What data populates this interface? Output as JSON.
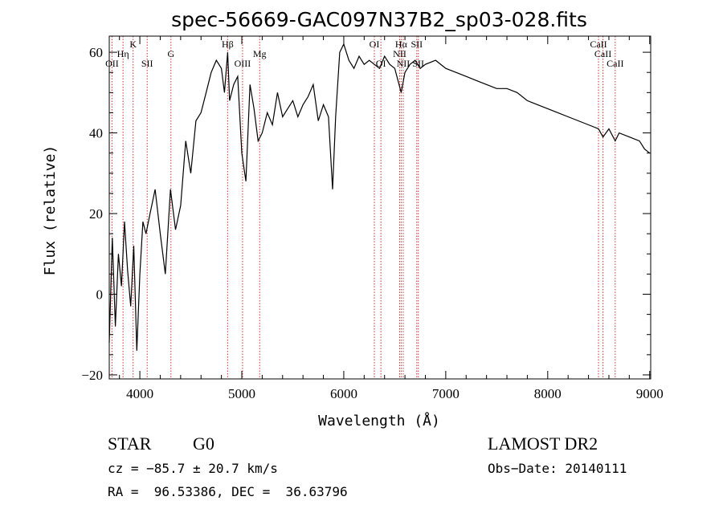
{
  "title": "spec-56669-GAC097N37B2_sp03-028.fits",
  "chart_data": {
    "type": "line",
    "title": "spec-56669-GAC097N37B2_sp03-028.fits",
    "xlabel": "Wavelength (Å)",
    "ylabel": "Flux (relative)",
    "xlim": [
      3700,
      9010
    ],
    "ylim": [
      -21,
      64
    ],
    "x_ticks": [
      4000,
      5000,
      6000,
      7000,
      8000,
      9000
    ],
    "y_ticks": [
      -20,
      0,
      20,
      40,
      60
    ],
    "x_tick_labels": [
      "4000",
      "5000",
      "6000",
      "7000",
      "8000",
      "9000"
    ],
    "y_tick_labels": [
      "−20",
      "0",
      "20",
      "40",
      "60"
    ],
    "series": [
      {
        "x": [
          3700,
          3730,
          3760,
          3790,
          3820,
          3850,
          3880,
          3910,
          3940,
          3970,
          4000,
          4030,
          4060,
          4100,
          4150,
          4200,
          4250,
          4300,
          4350,
          4400,
          4450,
          4500,
          4550,
          4600,
          4650,
          4700,
          4750,
          4800,
          4830,
          4861,
          4880,
          4920,
          4960,
          5000,
          5040,
          5080,
          5120,
          5160,
          5200,
          5250,
          5300,
          5350,
          5400,
          5450,
          5500,
          5550,
          5600,
          5650,
          5700,
          5750,
          5800,
          5850,
          5890,
          5920,
          5960,
          6000,
          6050,
          6100,
          6150,
          6200,
          6250,
          6300,
          6350,
          6400,
          6450,
          6500,
          6563,
          6600,
          6650,
          6700,
          6750,
          6800,
          6900,
          7000,
          7100,
          7200,
          7300,
          7400,
          7500,
          7600,
          7700,
          7800,
          7900,
          8000,
          8100,
          8200,
          8300,
          8400,
          8498,
          8542,
          8600,
          8662,
          8700,
          8800,
          8900,
          8950,
          9000
        ],
        "y": [
          -12,
          14,
          -8,
          10,
          2,
          18,
          6,
          -3,
          12,
          -14,
          5,
          18,
          15,
          20,
          26,
          15,
          5,
          26,
          16,
          22,
          38,
          30,
          43,
          45,
          50,
          55,
          58,
          56,
          50,
          60,
          48,
          52,
          54,
          35,
          28,
          52,
          46,
          38,
          40,
          45,
          42,
          50,
          44,
          46,
          48,
          44,
          47,
          49,
          52,
          43,
          47,
          44,
          26,
          44,
          60,
          62,
          58,
          56,
          59,
          57,
          58,
          57,
          56,
          59,
          57,
          56,
          50,
          55,
          57,
          58,
          56,
          57,
          58,
          56,
          55,
          54,
          53,
          52,
          51,
          51,
          50,
          48,
          47,
          46,
          45,
          44,
          43,
          42,
          41,
          39,
          41,
          38,
          40,
          39,
          38,
          36,
          35
        ]
      }
    ],
    "lines": [
      {
        "label": "OII",
        "wavelength": 3727,
        "row": 3
      },
      {
        "label": "Hη",
        "wavelength": 3835,
        "row": 2
      },
      {
        "label": "K",
        "wavelength": 3934,
        "row": 1
      },
      {
        "label": "SII",
        "wavelength": 4072,
        "row": 3
      },
      {
        "label": "G",
        "wavelength": 4305,
        "row": 2
      },
      {
        "label": "Hβ",
        "wavelength": 4861,
        "row": 1
      },
      {
        "label": "OIII",
        "wavelength": 5007,
        "row": 3
      },
      {
        "label": "Mg",
        "wavelength": 5175,
        "row": 2
      },
      {
        "label": "OI",
        "wavelength": 6300,
        "row": 1
      },
      {
        "label": "OI",
        "wavelength": 6364,
        "row": 3
      },
      {
        "label": "Hα",
        "wavelength": 6563,
        "row": 1
      },
      {
        "label": "NII",
        "wavelength": 6548,
        "row": 2
      },
      {
        "label": "NII",
        "wavelength": 6583,
        "row": 3
      },
      {
        "label": "SII",
        "wavelength": 6716,
        "row": 1
      },
      {
        "label": "SII",
        "wavelength": 6731,
        "row": 3
      },
      {
        "label": "CaII",
        "wavelength": 8498,
        "row": 1
      },
      {
        "label": "CaII",
        "wavelength": 8542,
        "row": 2
      },
      {
        "label": "CaII",
        "wavelength": 8662,
        "row": 3
      }
    ],
    "grid": false,
    "line_color": "#000000",
    "marker_color": "#cc3333"
  },
  "info": {
    "object_class": "STAR",
    "subclass": "G0",
    "survey": "LAMOST DR2",
    "cz": "cz = −85.7 ± 20.7 km/s",
    "obs_date": "Obs−Date: 20140111",
    "coords": "RA =  96.53386, DEC =  36.63796"
  }
}
